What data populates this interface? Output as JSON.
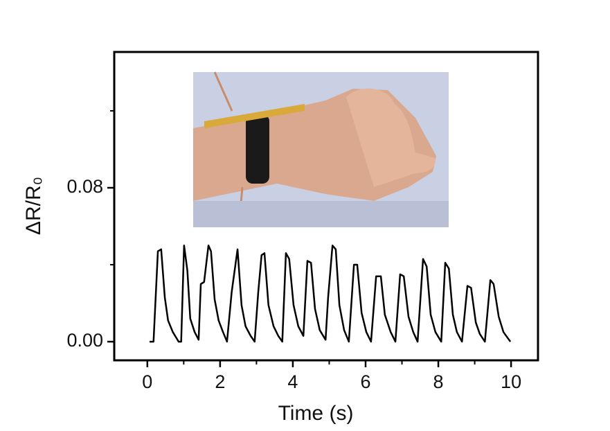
{
  "chart_data": {
    "type": "line",
    "xlabel": "Time (s)",
    "ylabel": "ΔR/R₀",
    "x": [
      0.06,
      0.17,
      0.29,
      0.38,
      0.48,
      0.57,
      0.7,
      0.86,
      0.93,
      1.01,
      1.1,
      1.18,
      1.3,
      1.41,
      1.47,
      1.56,
      1.68,
      1.75,
      1.85,
      1.96,
      2.08,
      2.19,
      2.32,
      2.48,
      2.59,
      2.7,
      2.84,
      2.95,
      3.05,
      3.14,
      3.22,
      3.33,
      3.47,
      3.6,
      3.71,
      3.81,
      3.9,
      4.02,
      4.15,
      4.29,
      4.4,
      4.5,
      4.61,
      4.74,
      4.9,
      4.97,
      5.09,
      5.18,
      5.28,
      5.41,
      5.54,
      5.68,
      5.77,
      5.89,
      6.02,
      6.15,
      6.29,
      6.42,
      6.53,
      6.69,
      6.82,
      6.95,
      7.05,
      7.18,
      7.31,
      7.43,
      7.58,
      7.68,
      7.79,
      7.92,
      8.08,
      8.19,
      8.29,
      8.4,
      8.51,
      8.65,
      8.8,
      8.9,
      9.03,
      9.14,
      9.28,
      9.43,
      9.52,
      9.66,
      9.79,
      9.98
    ],
    "series": [
      {
        "color": "#000000",
        "values": [
          0.0,
          0.0,
          0.047,
          0.048,
          0.023,
          0.011,
          0.005,
          0.0,
          0.0,
          0.05,
          0.037,
          0.012,
          0.005,
          0.001,
          0.03,
          0.031,
          0.05,
          0.047,
          0.022,
          0.011,
          0.005,
          0.0,
          0.026,
          0.048,
          0.019,
          0.008,
          0.003,
          0.0,
          0.026,
          0.045,
          0.046,
          0.019,
          0.008,
          0.003,
          0.0,
          0.046,
          0.043,
          0.019,
          0.008,
          0.003,
          0.042,
          0.041,
          0.017,
          0.006,
          0.001,
          0.023,
          0.05,
          0.048,
          0.019,
          0.006,
          0.0,
          0.04,
          0.04,
          0.015,
          0.005,
          0.0,
          0.034,
          0.034,
          0.014,
          0.005,
          0.0,
          0.035,
          0.034,
          0.013,
          0.005,
          0.0,
          0.043,
          0.039,
          0.014,
          0.005,
          0.0,
          0.041,
          0.038,
          0.014,
          0.005,
          0.0,
          0.029,
          0.028,
          0.01,
          0.004,
          0.0,
          0.032,
          0.03,
          0.013,
          0.005,
          0.0
        ]
      }
    ],
    "xlim": [
      -0.91,
      10.74
    ],
    "ylim": [
      -0.0097,
      0.1506
    ],
    "xticks": [
      0,
      2,
      4,
      6,
      8,
      10
    ],
    "xminorticks": [
      1,
      3,
      5,
      7,
      9
    ],
    "yticks": [
      {
        "value": 0,
        "label": "0.00"
      },
      {
        "value": 0.08,
        "label": "0.08"
      }
    ],
    "yminorticks": [
      0.04,
      0.12
    ],
    "grid": false
  }
}
